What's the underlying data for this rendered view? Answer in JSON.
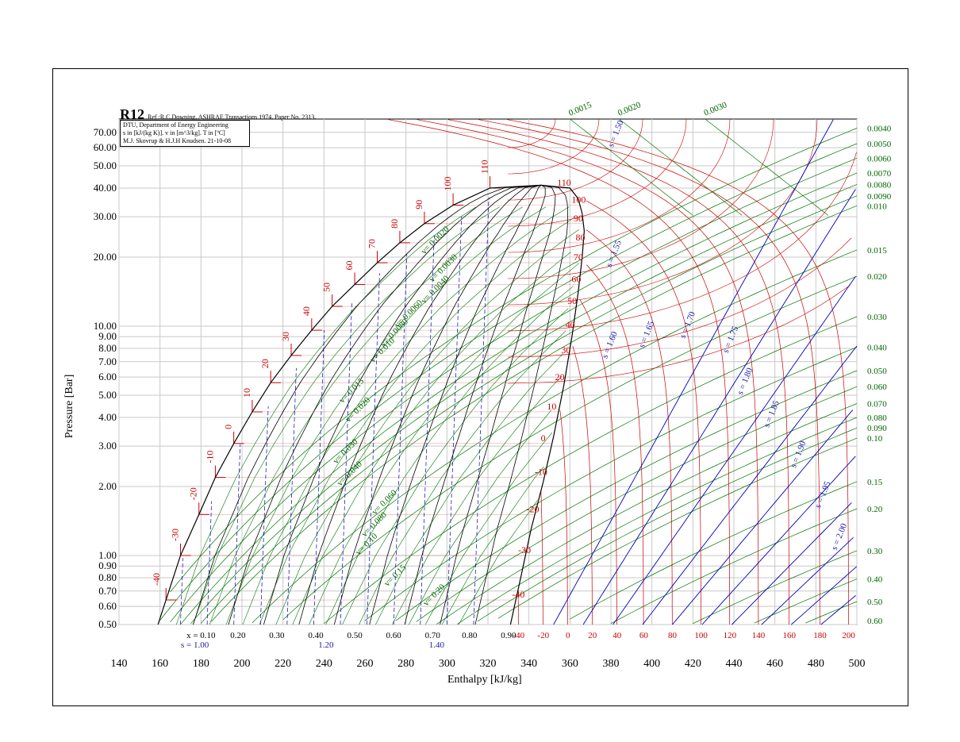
{
  "chart_data": {
    "type": "line",
    "refrigerant": "R12",
    "reference": "Ref :R.C.Downing. ASHRAE Transactions 1974. Paper No. 2313.",
    "info_lines": [
      "DTU, Department of Energy Engineering",
      "s in [kJ/(kg K)]. v in [m^3/kg]. T in [ºC]",
      "M.J. Skovrup & H.J.H Knudsen. 21-10-08"
    ],
    "xlabel": "Enthalpy [kJ/kg]",
    "ylabel": "Pressure [Bar]",
    "xlim": [
      140,
      500
    ],
    "ylim": [
      0.5,
      80
    ],
    "yscale": "log",
    "grid": true,
    "x_ticks": [
      "140",
      "160",
      "180",
      "200",
      "220",
      "240",
      "260",
      "280",
      "300",
      "320",
      "340",
      "360",
      "380",
      "400",
      "420",
      "440",
      "460",
      "480",
      "500"
    ],
    "y_ticks": [
      "0.50",
      "0.60",
      "0.70",
      "0.80",
      "0.90",
      "1.00",
      "2.00",
      "3.00",
      "4.00",
      "5.00",
      "6.00",
      "7.00",
      "8.00",
      "9.00",
      "10.00",
      "20.00",
      "30.00",
      "40.00",
      "50.00",
      "60.00",
      "70.00"
    ],
    "quality_labels": [
      {
        "text": "x = 0.10",
        "h": 180
      },
      {
        "text": "0.20",
        "h": 198
      },
      {
        "text": "0.30",
        "h": 217
      },
      {
        "text": "0.40",
        "h": 236
      },
      {
        "text": "0.50",
        "h": 255
      },
      {
        "text": "0.60",
        "h": 274
      },
      {
        "text": "0.70",
        "h": 293
      },
      {
        "text": "0.80",
        "h": 311
      },
      {
        "text": "0.90",
        "h": 330
      }
    ],
    "entropy_bottom_labels": [
      {
        "text": "s = 1.00",
        "h": 177
      },
      {
        "text": "1.20",
        "h": 241
      },
      {
        "text": "1.40",
        "h": 295
      }
    ],
    "temp_bottom_labels": [
      {
        "text": "-40",
        "h": 335
      },
      {
        "text": "-20",
        "h": 347
      },
      {
        "text": "0",
        "h": 359
      },
      {
        "text": "20",
        "h": 371
      },
      {
        "text": "40",
        "h": 383
      },
      {
        "text": "60",
        "h": 396
      },
      {
        "text": "80",
        "h": 410
      },
      {
        "text": "100",
        "h": 424
      },
      {
        "text": "120",
        "h": 438
      },
      {
        "text": "140",
        "h": 452
      },
      {
        "text": "160",
        "h": 467
      },
      {
        "text": "180",
        "h": 482
      },
      {
        "text": "200",
        "h": 496
      }
    ],
    "temp_liquid_labels": [
      {
        "text": "-40",
        "h": 161,
        "p": 0.64
      },
      {
        "text": "-30",
        "h": 170,
        "p": 1.0
      },
      {
        "text": "-20",
        "h": 179,
        "p": 1.51
      },
      {
        "text": "-10",
        "h": 187,
        "p": 2.19
      },
      {
        "text": "0",
        "h": 196,
        "p": 3.08
      },
      {
        "text": "10",
        "h": 205,
        "p": 4.23
      },
      {
        "text": "20",
        "h": 214,
        "p": 5.67
      },
      {
        "text": "30",
        "h": 224,
        "p": 7.45
      },
      {
        "text": "40",
        "h": 234,
        "p": 9.6
      },
      {
        "text": "50",
        "h": 244,
        "p": 12.2
      },
      {
        "text": "60",
        "h": 255,
        "p": 15.2
      },
      {
        "text": "70",
        "h": 266,
        "p": 18.9
      },
      {
        "text": "80",
        "h": 277,
        "p": 23.1
      },
      {
        "text": "90",
        "h": 289,
        "p": 28.0
      },
      {
        "text": "100",
        "h": 303,
        "p": 33.7
      },
      {
        "text": "110",
        "h": 321,
        "p": 40.0
      }
    ],
    "temp_vapor_labels": [
      {
        "text": "110",
        "h": 353,
        "p": 40.0
      },
      {
        "text": "100",
        "h": 360,
        "p": 33.7
      },
      {
        "text": "90",
        "h": 361,
        "p": 28.0
      },
      {
        "text": "80",
        "h": 362,
        "p": 23.1
      },
      {
        "text": "70",
        "h": 361,
        "p": 18.9
      },
      {
        "text": "60",
        "h": 360,
        "p": 15.2
      },
      {
        "text": "50",
        "h": 358,
        "p": 12.2
      },
      {
        "text": "40",
        "h": 357,
        "p": 9.6
      },
      {
        "text": "30",
        "h": 355,
        "p": 7.45
      },
      {
        "text": "20",
        "h": 352,
        "p": 5.67
      },
      {
        "text": "10",
        "h": 348,
        "p": 4.23
      },
      {
        "text": "0",
        "h": 345,
        "p": 3.08
      },
      {
        "text": "-10",
        "h": 342,
        "p": 2.19
      },
      {
        "text": "-20",
        "h": 338,
        "p": 1.51
      },
      {
        "text": "-30",
        "h": 334,
        "p": 1.0
      },
      {
        "text": "-40",
        "h": 331,
        "p": 0.64
      }
    ],
    "volume_right_labels": [
      {
        "text": "0.0040",
        "p": 73.0
      },
      {
        "text": "0.0050",
        "p": 62.5
      },
      {
        "text": "0.0060",
        "p": 54.0
      },
      {
        "text": "0.0070",
        "p": 46.5
      },
      {
        "text": "0.0080",
        "p": 41.5
      },
      {
        "text": "0.0090",
        "p": 37.0
      },
      {
        "text": "0.010",
        "p": 33.5
      },
      {
        "text": "0.015",
        "p": 21.5
      },
      {
        "text": "0.020",
        "p": 16.5
      },
      {
        "text": "0.030",
        "p": 11.0
      },
      {
        "text": "0.040",
        "p": 8.1
      },
      {
        "text": "0.050",
        "p": 6.4
      },
      {
        "text": "0.060",
        "p": 5.45
      },
      {
        "text": "0.070",
        "p": 4.6
      },
      {
        "text": "0.080",
        "p": 4.0
      },
      {
        "text": "0.090",
        "p": 3.6
      },
      {
        "text": "0.10",
        "p": 3.25
      },
      {
        "text": "0.15",
        "p": 2.1
      },
      {
        "text": "0.20",
        "p": 1.6
      },
      {
        "text": "0.30",
        "p": 1.05
      },
      {
        "text": "0.40",
        "p": 0.79
      },
      {
        "text": "0.50",
        "p": 0.63
      },
      {
        "text": "0.60",
        "p": 0.52
      }
    ],
    "volume_top_labels": [
      {
        "text": "0.0015",
        "h": 360
      },
      {
        "text": "0.0020",
        "h": 384
      },
      {
        "text": "0.0030",
        "h": 426
      }
    ],
    "volume_inner_labels": [
      {
        "text": "v= 0.0020",
        "h": 289,
        "p": 20.5
      },
      {
        "text": "v= 0.0030",
        "h": 293,
        "p": 15.5
      },
      {
        "text": "v= 0.0040",
        "h": 289,
        "p": 12.5
      },
      {
        "text": "v= 0.0060",
        "h": 276,
        "p": 9.8
      },
      {
        "text": "v= 0.0080",
        "h": 269,
        "p": 8.1
      },
      {
        "text": "v= 0.010",
        "h": 264,
        "p": 6.9
      },
      {
        "text": "v= 0.015",
        "h": 249,
        "p": 4.6
      },
      {
        "text": "v= 0.020",
        "h": 252,
        "p": 3.8
      },
      {
        "text": "v= 0.030",
        "h": 246,
        "p": 2.5
      },
      {
        "text": "v= 0.040",
        "h": 248,
        "p": 2.0
      },
      {
        "text": "v= 0.060",
        "h": 265,
        "p": 1.5
      },
      {
        "text": "v= 0.080",
        "h": 260,
        "p": 1.2
      },
      {
        "text": "v= 0.10",
        "h": 257,
        "p": 1.0
      },
      {
        "text": "v= 0.15",
        "h": 271,
        "p": 0.73
      },
      {
        "text": "v= 0.20",
        "h": 290,
        "p": 0.6
      }
    ],
    "entropy_labels": [
      {
        "text": "s = 1.50",
        "h": 381,
        "p": 60.0
      },
      {
        "text": "s = 1.55",
        "h": 380,
        "p": 18.0
      },
      {
        "text": "s = 1.60",
        "h": 378,
        "p": 7.2
      },
      {
        "text": "s = 1.65",
        "h": 396,
        "p": 8.0
      },
      {
        "text": "s = 1.70",
        "h": 416,
        "p": 8.8
      },
      {
        "text": "s = 1.75",
        "h": 437,
        "p": 7.6
      },
      {
        "text": "s = 1.80",
        "h": 444,
        "p": 5.0
      },
      {
        "text": "s = 1.85",
        "h": 457,
        "p": 3.6
      },
      {
        "text": "s = 1.90",
        "h": 470,
        "p": 2.4
      },
      {
        "text": "s = 1.95",
        "h": 482,
        "p": 1.6
      },
      {
        "text": "s = 2.00",
        "h": 490,
        "p": 1.05
      }
    ],
    "saturation_liquid": [
      [
        159,
        0.5
      ],
      [
        170,
        1.0
      ],
      [
        179,
        1.51
      ],
      [
        187,
        2.19
      ],
      [
        196,
        3.08
      ],
      [
        205,
        4.23
      ],
      [
        214,
        5.67
      ],
      [
        224,
        7.45
      ],
      [
        234,
        9.6
      ],
      [
        244,
        12.2
      ],
      [
        255,
        15.2
      ],
      [
        266,
        18.9
      ],
      [
        277,
        23.1
      ],
      [
        289,
        28.0
      ],
      [
        303,
        33.7
      ],
      [
        321,
        40.0
      ],
      [
        346,
        41.2
      ]
    ],
    "saturation_vapor": [
      [
        346,
        41.2
      ],
      [
        360,
        40.0
      ],
      [
        364,
        36.0
      ],
      [
        366,
        31.0
      ],
      [
        367,
        26.0
      ],
      [
        366,
        20.0
      ],
      [
        364,
        14.0
      ],
      [
        361,
        9.0
      ],
      [
        357,
        5.5
      ],
      [
        352,
        3.3
      ],
      [
        347,
        2.1
      ],
      [
        341,
        1.3
      ],
      [
        336,
        0.8
      ],
      [
        331,
        0.5
      ]
    ],
    "isentropes": [
      1.5,
      1.55,
      1.6,
      1.65,
      1.7,
      1.75,
      1.8,
      1.85,
      1.9,
      1.95,
      2.0
    ]
  },
  "colors": {
    "grid": "#c8c8c8",
    "saturation": "#000000",
    "quality": "#000000",
    "temperature": "#cc0000",
    "volume": "#007700",
    "entropy": "#0000bb",
    "volume_label": "#006600",
    "temp_label": "#cc0000",
    "entropy_label": "#1a1aaa"
  }
}
